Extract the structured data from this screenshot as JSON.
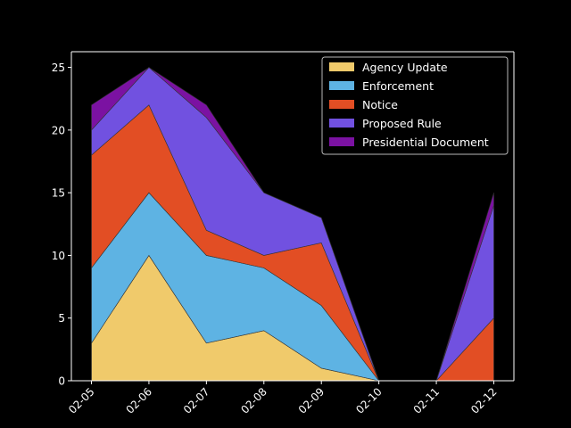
{
  "chart_data": {
    "type": "area",
    "stacked": true,
    "title": "",
    "xlabel": "",
    "ylabel": "",
    "categories": [
      "02-05",
      "02-06",
      "02-07",
      "02-08",
      "02-09",
      "02-10",
      "02-11",
      "02-12"
    ],
    "ylim": [
      0,
      26.25
    ],
    "yticks": [
      0,
      5,
      10,
      15,
      20,
      25
    ],
    "grid": false,
    "legend_position": "top-right",
    "background": "#000000",
    "series": [
      {
        "name": "Agency Update",
        "color": "#f0ca6b",
        "values": [
          3,
          10,
          3,
          4,
          1,
          0,
          null,
          0
        ]
      },
      {
        "name": "Enforcement",
        "color": "#5eb3e3",
        "values": [
          6,
          5,
          7,
          5,
          5,
          0,
          null,
          0
        ]
      },
      {
        "name": "Notice",
        "color": "#e24e24",
        "values": [
          9,
          7,
          2,
          1,
          5,
          0,
          0,
          5
        ]
      },
      {
        "name": "Proposed Rule",
        "color": "#7151e0",
        "values": [
          2,
          3,
          9,
          5,
          2,
          0,
          0,
          9
        ]
      },
      {
        "name": "Presidential Document",
        "color": "#7b12a2",
        "values": [
          2,
          0,
          1,
          0,
          0,
          0,
          0,
          1
        ]
      }
    ]
  }
}
